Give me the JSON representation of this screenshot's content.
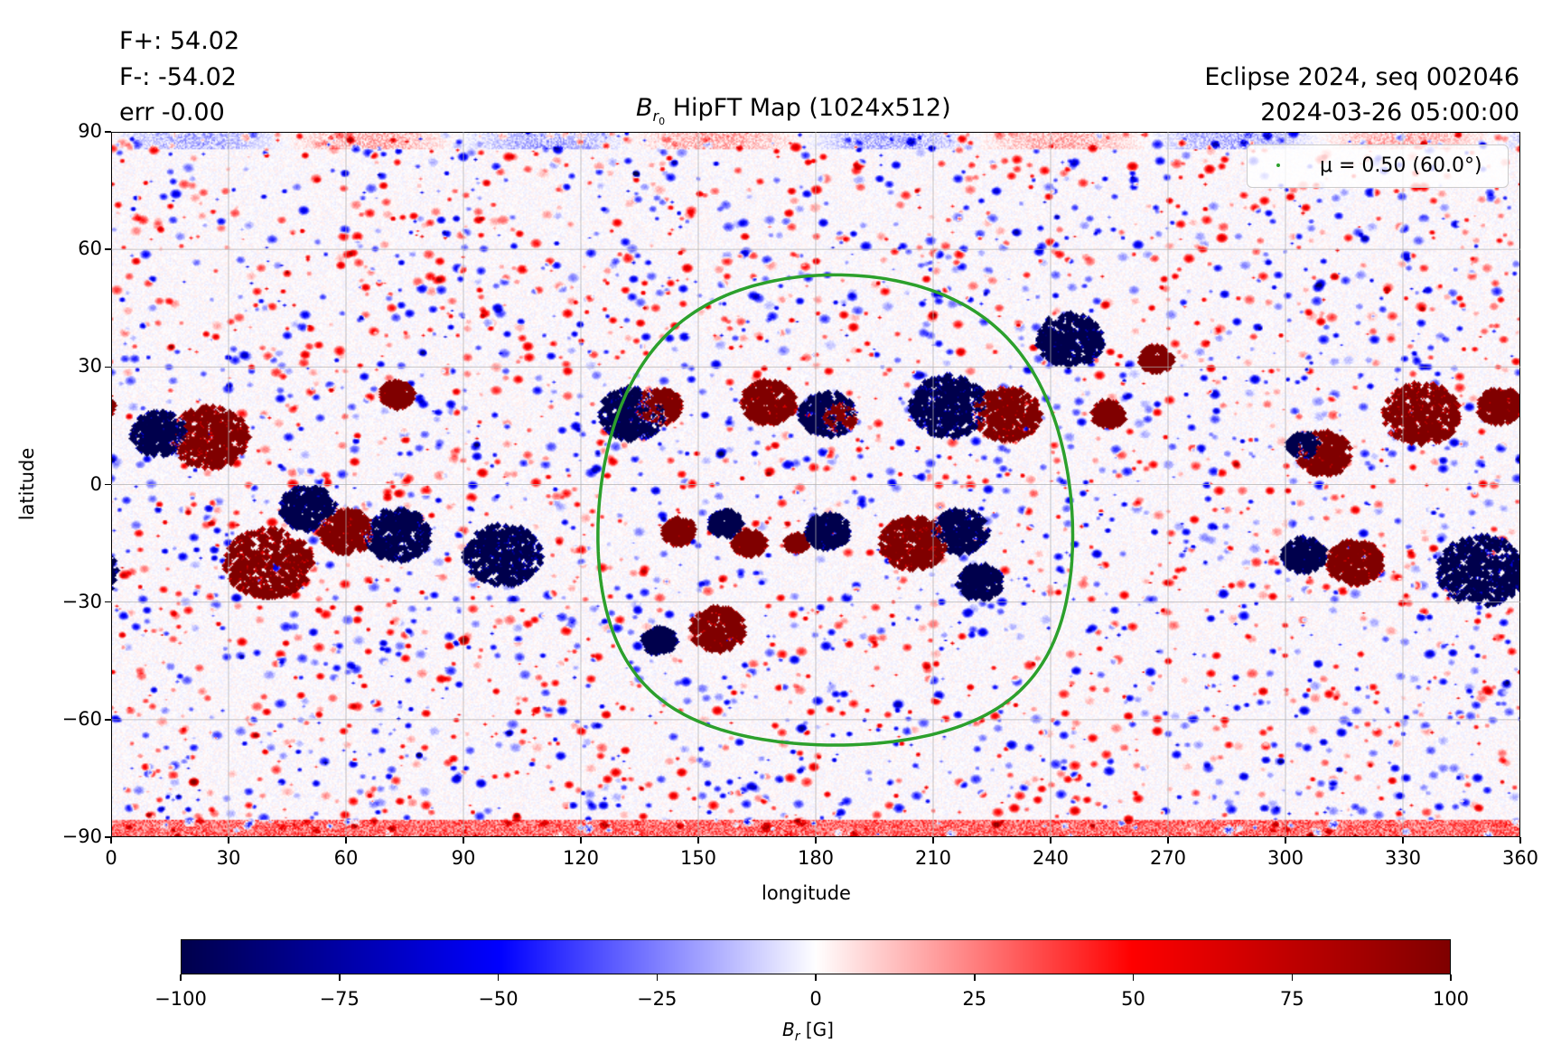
{
  "header": {
    "flux_pos": "F+: 54.02",
    "flux_neg": "F-: -54.02",
    "err": "err -0.00",
    "title_sym": "B",
    "title_sub": "r",
    "title_subsub": "0",
    "title_rest": " HipFT Map (1024x512)",
    "right_line1": "Eclipse 2024, seq 002046",
    "right_line2": "2024-03-26 05:00:00"
  },
  "chart_data": {
    "type": "heatmap",
    "title": "B_r0 HipFT Map (1024x512)",
    "xlabel": "longitude",
    "ylabel": "latitude",
    "xlim": [
      0,
      360
    ],
    "ylim": [
      -90,
      90
    ],
    "xticks": [
      "0",
      "30",
      "60",
      "90",
      "120",
      "150",
      "180",
      "210",
      "240",
      "270",
      "300",
      "330",
      "360"
    ],
    "yticks": [
      "90",
      "60",
      "30",
      "0",
      "−30",
      "−60",
      "−90"
    ],
    "grid": true,
    "colormap": "seismic",
    "colors": {
      "neg_max": "#00004c",
      "neg_mid": "#0000ff",
      "zero": "#ffffff",
      "pos_mid": "#ff0000",
      "pos_max": "#800000",
      "contour": "#2ca02c"
    },
    "clim": [
      -100,
      100
    ],
    "colorbar": {
      "label_sym": "B",
      "label_sub": "r",
      "label_unit": " [G]",
      "ticks": [
        "−100",
        "−75",
        "−50",
        "−25",
        "0",
        "25",
        "50",
        "75",
        "100"
      ],
      "tick_values": [
        -100,
        -75,
        -50,
        -25,
        0,
        25,
        50,
        75,
        100
      ]
    },
    "legend": {
      "label": "μ = 0.50 (60.0°)",
      "placement": "upper-right"
    },
    "contour": {
      "mu": 0.5,
      "angle_deg": 60.0,
      "center_lon": 185,
      "center_lat": -6.5
    },
    "active_regions": [
      {
        "lon": 140,
        "lat": 20,
        "pol": 1,
        "size": 4
      },
      {
        "lon": 133,
        "lat": 18,
        "pol": -1,
        "size": 6
      },
      {
        "lon": 168,
        "lat": 21,
        "pol": 1,
        "size": 5
      },
      {
        "lon": 183,
        "lat": 18,
        "pol": -1,
        "size": 5
      },
      {
        "lon": 186,
        "lat": 17,
        "pol": 1,
        "size": 3
      },
      {
        "lon": 214,
        "lat": 20,
        "pol": -1,
        "size": 7
      },
      {
        "lon": 229,
        "lat": 18,
        "pol": 1,
        "size": 6
      },
      {
        "lon": 205,
        "lat": -15,
        "pol": 1,
        "size": 6
      },
      {
        "lon": 217,
        "lat": -12,
        "pol": -1,
        "size": 5
      },
      {
        "lon": 222,
        "lat": -25,
        "pol": -1,
        "size": 4
      },
      {
        "lon": 183,
        "lat": -12,
        "pol": -1,
        "size": 4
      },
      {
        "lon": 175,
        "lat": -15,
        "pol": 1,
        "size": 2
      },
      {
        "lon": 145,
        "lat": -12,
        "pol": 1,
        "size": 3
      },
      {
        "lon": 157,
        "lat": -10,
        "pol": -1,
        "size": 3
      },
      {
        "lon": 163,
        "lat": -15,
        "pol": 1,
        "size": 3
      },
      {
        "lon": 155,
        "lat": -37,
        "pol": 1,
        "size": 5
      },
      {
        "lon": 140,
        "lat": -40,
        "pol": -1,
        "size": 3
      },
      {
        "lon": 25,
        "lat": 12,
        "pol": 1,
        "size": 7
      },
      {
        "lon": 12,
        "lat": 13,
        "pol": -1,
        "size": 5
      },
      {
        "lon": 40,
        "lat": -20,
        "pol": 1,
        "size": 8
      },
      {
        "lon": 60,
        "lat": -12,
        "pol": 1,
        "size": 5
      },
      {
        "lon": 50,
        "lat": -6,
        "pol": -1,
        "size": 5
      },
      {
        "lon": 73,
        "lat": -13,
        "pol": -1,
        "size": 6
      },
      {
        "lon": 100,
        "lat": -18,
        "pol": -1,
        "size": 7
      },
      {
        "lon": 73,
        "lat": 23,
        "pol": 1,
        "size": 3
      },
      {
        "lon": 255,
        "lat": 18,
        "pol": 1,
        "size": 3
      },
      {
        "lon": 267,
        "lat": 32,
        "pol": 1,
        "size": 3
      },
      {
        "lon": 245,
        "lat": 37,
        "pol": -1,
        "size": 6
      },
      {
        "lon": 305,
        "lat": -18,
        "pol": -1,
        "size": 4
      },
      {
        "lon": 318,
        "lat": -20,
        "pol": 1,
        "size": 5
      },
      {
        "lon": 350,
        "lat": -22,
        "pol": -1,
        "size": 8
      },
      {
        "lon": 310,
        "lat": 8,
        "pol": 1,
        "size": 5
      },
      {
        "lon": 305,
        "lat": 10,
        "pol": -1,
        "size": 3
      },
      {
        "lon": 335,
        "lat": 18,
        "pol": 1,
        "size": 7
      },
      {
        "lon": 355,
        "lat": 20,
        "pol": 1,
        "size": 4
      }
    ]
  }
}
